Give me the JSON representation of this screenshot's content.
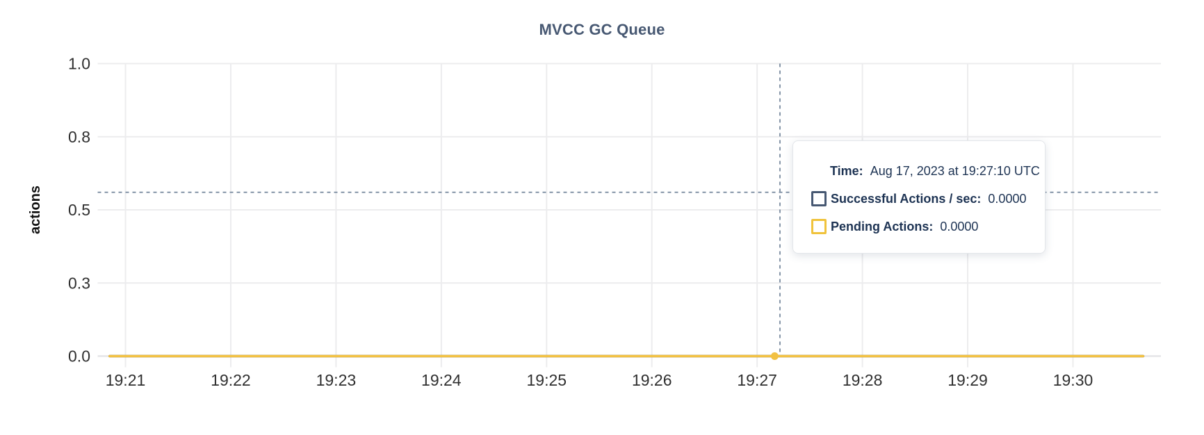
{
  "chart_data": {
    "type": "line",
    "title": "MVCC GC Queue",
    "ylabel": "actions",
    "x_tick_labels": [
      "19:21",
      "19:22",
      "19:23",
      "19:24",
      "19:25",
      "19:26",
      "19:27",
      "19:28",
      "19:29",
      "19:30"
    ],
    "y_tick_labels": [
      "0.0",
      "0.3",
      "0.5",
      "0.8",
      "1.0"
    ],
    "y_tick_values": [
      0,
      0.25,
      0.5,
      0.75,
      1.0
    ],
    "ylim": [
      0,
      1
    ],
    "grid": true,
    "legend_position": "tooltip-only",
    "x_range": [
      "19:20:51",
      "19:30:40"
    ],
    "series": [
      {
        "name": "Successful Actions / sec",
        "color": "#475872",
        "constant_value": 0,
        "values": [
          0,
          0,
          0,
          0,
          0,
          0,
          0,
          0,
          0,
          0
        ]
      },
      {
        "name": "Pending Actions",
        "color": "#f2c143",
        "constant_value": 0,
        "values": [
          0,
          0,
          0,
          0,
          0,
          0,
          0,
          0,
          0,
          0
        ]
      }
    ],
    "highlight_point": {
      "series": "Pending Actions",
      "time": "19:27:10",
      "value": 0,
      "color": "#f2c143"
    },
    "crosshair": {
      "time": "19:27:13",
      "value": 0.56
    }
  },
  "tooltip": {
    "time_label": "Time:",
    "time_value": "Aug 17, 2023 at 19:27:10 UTC",
    "rows": [
      {
        "label": "Successful Actions / sec:",
        "value": "0.0000",
        "color": "#475872"
      },
      {
        "label": "Pending Actions:",
        "value": "0.0000",
        "color": "#f0c33c"
      }
    ]
  },
  "colors": {
    "title": "#475872",
    "tick_text": "#2f2f2f",
    "axis_label": "#111111",
    "gridline": "#ececee",
    "baseline": "#e9e9eb",
    "crosshair": "#8494a7",
    "tooltip_text": "#1d3353",
    "tooltip_border": "#e3e6ea"
  }
}
